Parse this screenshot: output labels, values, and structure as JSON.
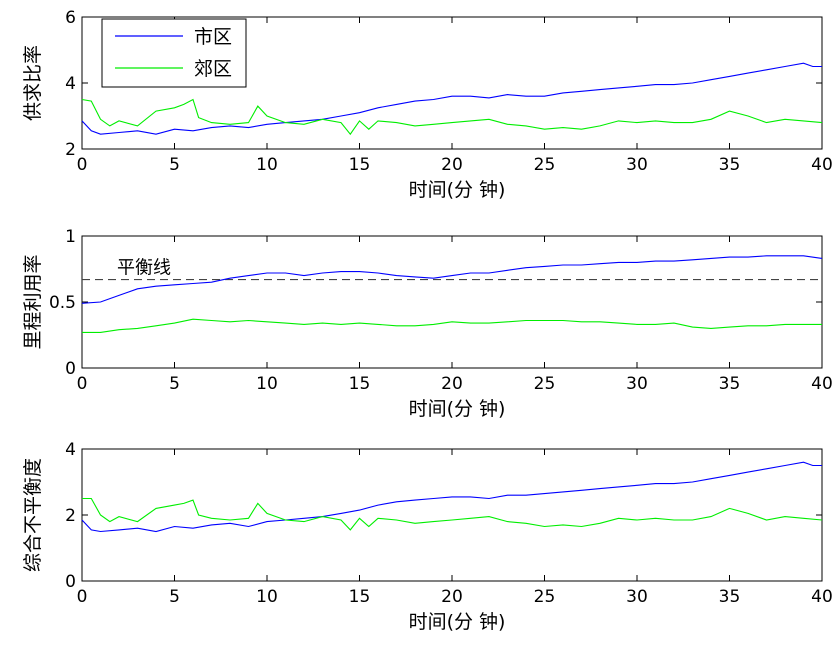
{
  "chart_data": [
    {
      "type": "line",
      "xlabel": "时间(分 钟)",
      "ylabel": "供求比率",
      "xlim": [
        0,
        40
      ],
      "ylim": [
        2,
        6
      ],
      "xticks": [
        "0",
        "5",
        "10",
        "15",
        "20",
        "25",
        "30",
        "35",
        "40"
      ],
      "yticks": [
        "2",
        "4",
        "6"
      ],
      "legend": {
        "position": "top-left",
        "entries": [
          "市区",
          "郊区"
        ]
      },
      "series": [
        {
          "name": "市区",
          "color": "#0000ff",
          "x": [
            0,
            0.5,
            1,
            2,
            3,
            4,
            5,
            6,
            7,
            8,
            9,
            10,
            11,
            12,
            13,
            14,
            15,
            16,
            17,
            18,
            19,
            20,
            21,
            22,
            23,
            24,
            25,
            26,
            27,
            28,
            29,
            30,
            31,
            32,
            33,
            34,
            35,
            36,
            37,
            38,
            39,
            39.5,
            40
          ],
          "values": [
            2.85,
            2.55,
            2.45,
            2.5,
            2.55,
            2.45,
            2.6,
            2.55,
            2.65,
            2.7,
            2.65,
            2.75,
            2.8,
            2.85,
            2.9,
            3.0,
            3.1,
            3.25,
            3.35,
            3.45,
            3.5,
            3.6,
            3.6,
            3.55,
            3.65,
            3.6,
            3.6,
            3.7,
            3.75,
            3.8,
            3.85,
            3.9,
            3.95,
            3.95,
            4.0,
            4.1,
            4.2,
            4.3,
            4.4,
            4.5,
            4.6,
            4.5,
            4.5
          ]
        },
        {
          "name": "郊区",
          "color": "#00ee00",
          "x": [
            0,
            0.5,
            1,
            1.5,
            2,
            3,
            4,
            5,
            5.5,
            6,
            6.3,
            7,
            8,
            9,
            9.5,
            10,
            11,
            12,
            13,
            14,
            14.5,
            15,
            15.5,
            16,
            17,
            18,
            19,
            20,
            21,
            22,
            23,
            24,
            25,
            26,
            27,
            28,
            29,
            30,
            31,
            32,
            33,
            34,
            35,
            36,
            37,
            38,
            39,
            40
          ],
          "values": [
            3.5,
            3.45,
            2.9,
            2.7,
            2.85,
            2.7,
            3.15,
            3.25,
            3.35,
            3.5,
            2.95,
            2.8,
            2.75,
            2.8,
            3.3,
            3.0,
            2.8,
            2.75,
            2.9,
            2.8,
            2.45,
            2.85,
            2.6,
            2.85,
            2.8,
            2.7,
            2.75,
            2.8,
            2.85,
            2.9,
            2.75,
            2.7,
            2.6,
            2.65,
            2.6,
            2.7,
            2.85,
            2.8,
            2.85,
            2.8,
            2.8,
            2.9,
            3.15,
            3.0,
            2.8,
            2.9,
            2.85,
            2.8
          ]
        }
      ]
    },
    {
      "type": "line",
      "xlabel": "时间(分 钟)",
      "ylabel": "里程利用率",
      "xlim": [
        0,
        40
      ],
      "ylim": [
        0,
        1
      ],
      "xticks": [
        "0",
        "5",
        "10",
        "15",
        "20",
        "25",
        "30",
        "35",
        "40"
      ],
      "yticks": [
        "0",
        "0.5",
        "1"
      ],
      "reference_line": {
        "label": "平衡线",
        "value": 0.67
      },
      "series": [
        {
          "name": "市区",
          "color": "#0000ff",
          "x": [
            0,
            1,
            2,
            3,
            4,
            5,
            6,
            7,
            8,
            9,
            10,
            11,
            12,
            13,
            14,
            15,
            16,
            17,
            18,
            19,
            20,
            21,
            22,
            23,
            24,
            25,
            26,
            27,
            28,
            29,
            30,
            31,
            32,
            33,
            34,
            35,
            36,
            37,
            38,
            39,
            40
          ],
          "values": [
            0.49,
            0.5,
            0.55,
            0.6,
            0.62,
            0.63,
            0.64,
            0.65,
            0.68,
            0.7,
            0.72,
            0.72,
            0.7,
            0.72,
            0.73,
            0.73,
            0.72,
            0.7,
            0.69,
            0.68,
            0.7,
            0.72,
            0.72,
            0.74,
            0.76,
            0.77,
            0.78,
            0.78,
            0.79,
            0.8,
            0.8,
            0.81,
            0.81,
            0.82,
            0.83,
            0.84,
            0.84,
            0.85,
            0.85,
            0.85,
            0.83
          ]
        },
        {
          "name": "郊区",
          "color": "#00ee00",
          "x": [
            0,
            1,
            2,
            3,
            4,
            5,
            6,
            7,
            8,
            9,
            10,
            11,
            12,
            13,
            14,
            15,
            16,
            17,
            18,
            19,
            20,
            21,
            22,
            23,
            24,
            25,
            26,
            27,
            28,
            29,
            30,
            31,
            32,
            33,
            34,
            35,
            36,
            37,
            38,
            39,
            40
          ],
          "values": [
            0.27,
            0.27,
            0.29,
            0.3,
            0.32,
            0.34,
            0.37,
            0.36,
            0.35,
            0.36,
            0.35,
            0.34,
            0.33,
            0.34,
            0.33,
            0.34,
            0.33,
            0.32,
            0.32,
            0.33,
            0.35,
            0.34,
            0.34,
            0.35,
            0.36,
            0.36,
            0.36,
            0.35,
            0.35,
            0.34,
            0.33,
            0.33,
            0.34,
            0.31,
            0.3,
            0.31,
            0.32,
            0.32,
            0.33,
            0.33,
            0.33
          ]
        }
      ]
    },
    {
      "type": "line",
      "xlabel": "时间(分 钟)",
      "ylabel": "综合不平衡度",
      "xlim": [
        0,
        40
      ],
      "ylim": [
        0,
        4
      ],
      "xticks": [
        "0",
        "5",
        "10",
        "15",
        "20",
        "25",
        "30",
        "35",
        "40"
      ],
      "yticks": [
        "0",
        "2",
        "4"
      ],
      "series": [
        {
          "name": "市区",
          "color": "#0000ff",
          "x": [
            0,
            0.5,
            1,
            2,
            3,
            4,
            5,
            6,
            7,
            8,
            9,
            10,
            11,
            12,
            13,
            14,
            15,
            16,
            17,
            18,
            19,
            20,
            21,
            22,
            23,
            24,
            25,
            26,
            27,
            28,
            29,
            30,
            31,
            32,
            33,
            34,
            35,
            36,
            37,
            38,
            39,
            39.5,
            40
          ],
          "values": [
            1.85,
            1.55,
            1.5,
            1.55,
            1.6,
            1.5,
            1.65,
            1.6,
            1.7,
            1.75,
            1.65,
            1.8,
            1.85,
            1.9,
            1.95,
            2.05,
            2.15,
            2.3,
            2.4,
            2.45,
            2.5,
            2.55,
            2.55,
            2.5,
            2.6,
            2.6,
            2.65,
            2.7,
            2.75,
            2.8,
            2.85,
            2.9,
            2.95,
            2.95,
            3.0,
            3.1,
            3.2,
            3.3,
            3.4,
            3.5,
            3.6,
            3.5,
            3.5
          ]
        },
        {
          "name": "郊区",
          "color": "#00ee00",
          "x": [
            0,
            0.5,
            1,
            1.5,
            2,
            3,
            4,
            5,
            5.5,
            6,
            6.3,
            7,
            8,
            9,
            9.5,
            10,
            11,
            12,
            13,
            14,
            14.5,
            15,
            15.5,
            16,
            17,
            18,
            19,
            20,
            21,
            22,
            23,
            24,
            25,
            26,
            27,
            28,
            29,
            30,
            31,
            32,
            33,
            34,
            35,
            36,
            37,
            38,
            39,
            40
          ],
          "values": [
            2.5,
            2.5,
            2.0,
            1.8,
            1.95,
            1.8,
            2.2,
            2.3,
            2.35,
            2.45,
            2.0,
            1.9,
            1.85,
            1.9,
            2.35,
            2.05,
            1.85,
            1.8,
            1.95,
            1.85,
            1.55,
            1.9,
            1.65,
            1.9,
            1.85,
            1.75,
            1.8,
            1.85,
            1.9,
            1.95,
            1.8,
            1.75,
            1.65,
            1.7,
            1.65,
            1.75,
            1.9,
            1.85,
            1.9,
            1.85,
            1.85,
            1.95,
            2.2,
            2.05,
            1.85,
            1.95,
            1.9,
            1.85
          ]
        }
      ]
    }
  ]
}
